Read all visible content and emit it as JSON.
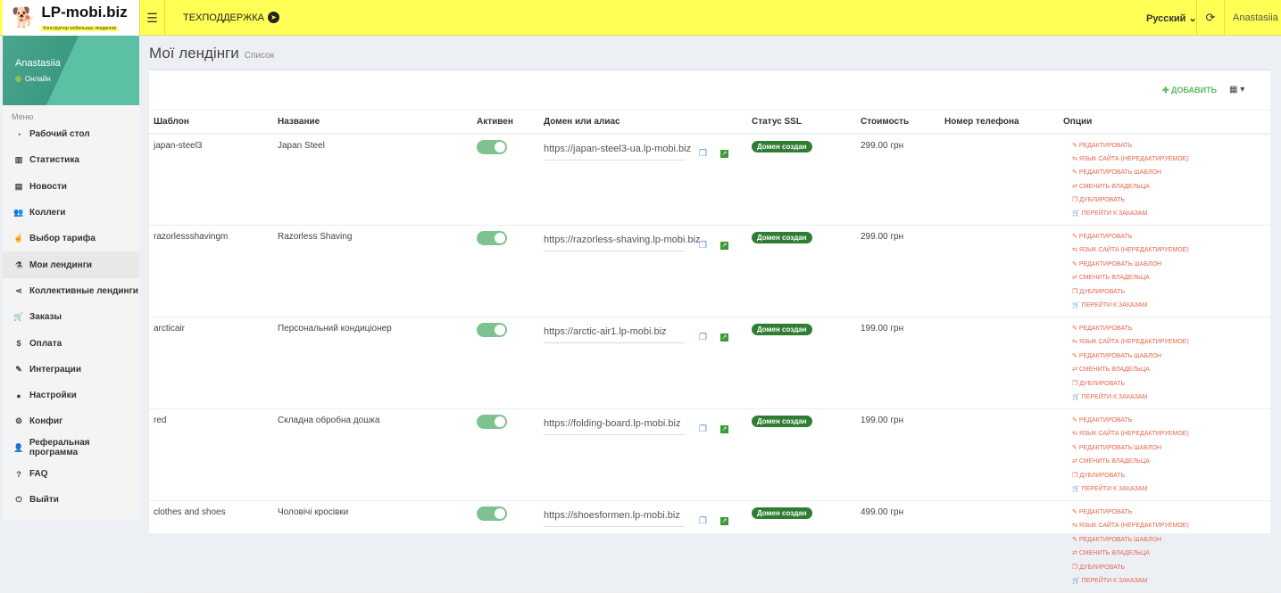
{
  "brand": {
    "name": "LP-mobi.biz",
    "tagline": "Конструктор мобильных лендингов"
  },
  "topbar": {
    "support": "ТЕХПОДДЕРЖКА",
    "language": "Русский",
    "user": "Anastasiia"
  },
  "sidebar": {
    "user": "Anastasiia",
    "status": "Онлайн",
    "menu_label": "Меню",
    "items": [
      {
        "label": "Рабочий стол",
        "icon": "dashboard"
      },
      {
        "label": "Статистика",
        "icon": "bar-chart"
      },
      {
        "label": "Новости",
        "icon": "newspaper"
      },
      {
        "label": "Коллеги",
        "icon": "users"
      },
      {
        "label": "Выбор тарифа",
        "icon": "hand-pointer"
      },
      {
        "label": "Мои лендинги",
        "icon": "flask",
        "active": true
      },
      {
        "label": "Коллективные лендинги",
        "icon": "share"
      },
      {
        "label": "Заказы",
        "icon": "cart"
      },
      {
        "label": "Оплата",
        "icon": "dollar"
      },
      {
        "label": "Интеграции",
        "icon": "plug"
      },
      {
        "label": "Настройки",
        "icon": "user"
      },
      {
        "label": "Конфиг",
        "icon": "gears"
      },
      {
        "label": "Реферальная программа",
        "icon": "user-plus"
      },
      {
        "label": "FAQ",
        "icon": "question"
      },
      {
        "label": "Выйти",
        "icon": "power"
      }
    ]
  },
  "page": {
    "title": "Мої лендінги",
    "subtitle": "Список",
    "add": "ДОБАВИТЬ"
  },
  "table": {
    "headers": [
      "Шаблон",
      "Название",
      "Активен",
      "Домен или алиас",
      "Статус SSL",
      "Стоимость",
      "Номер телефона",
      "Опции"
    ],
    "options": [
      "РЕДАКТИРОВАТЬ",
      "ЯЗЫК САЙТА (НЕРЕДАКТИРУЕМОЕ)",
      "РЕДАКТИРОВАТЬ ШАБЛОН",
      "СМЕНИТЬ ВЛАДЕЛЬЦА",
      "ДУБЛИРОВАТЬ",
      "ПЕРЕЙТИ К ЗАКАЗАМ"
    ],
    "rows": [
      {
        "template": "japan-steel3",
        "name": "Japan Steel",
        "active": true,
        "domain": "https://japan-steel3-ua.lp-mobi.biz",
        "ssl": "Домен создан",
        "price": "299.00 грн",
        "phone": ""
      },
      {
        "template": "razorlessshavingm",
        "name": "Razorless Shaving",
        "active": true,
        "domain": "https://razorless-shaving.lp-mobi.biz",
        "ssl": "Домен создан",
        "price": "299.00 грн",
        "phone": ""
      },
      {
        "template": "arcticair",
        "name": "Персональний кондиціонер",
        "active": true,
        "domain": "https://arctic-air1.lp-mobi.biz",
        "ssl": "Домен создан",
        "price": "199.00 грн",
        "phone": ""
      },
      {
        "template": "red",
        "name": "Складна обробна дошка",
        "active": true,
        "domain": "https://folding-board.lp-mobi.biz",
        "ssl": "Домен создан",
        "price": "199.00 грн",
        "phone": ""
      },
      {
        "template": "clothes and shoes",
        "name": "Чоловічі кросівки",
        "active": true,
        "domain": "https://shoesformen.lp-mobi.biz",
        "ssl": "Домен создан",
        "price": "499.00 грн",
        "phone": ""
      }
    ]
  }
}
